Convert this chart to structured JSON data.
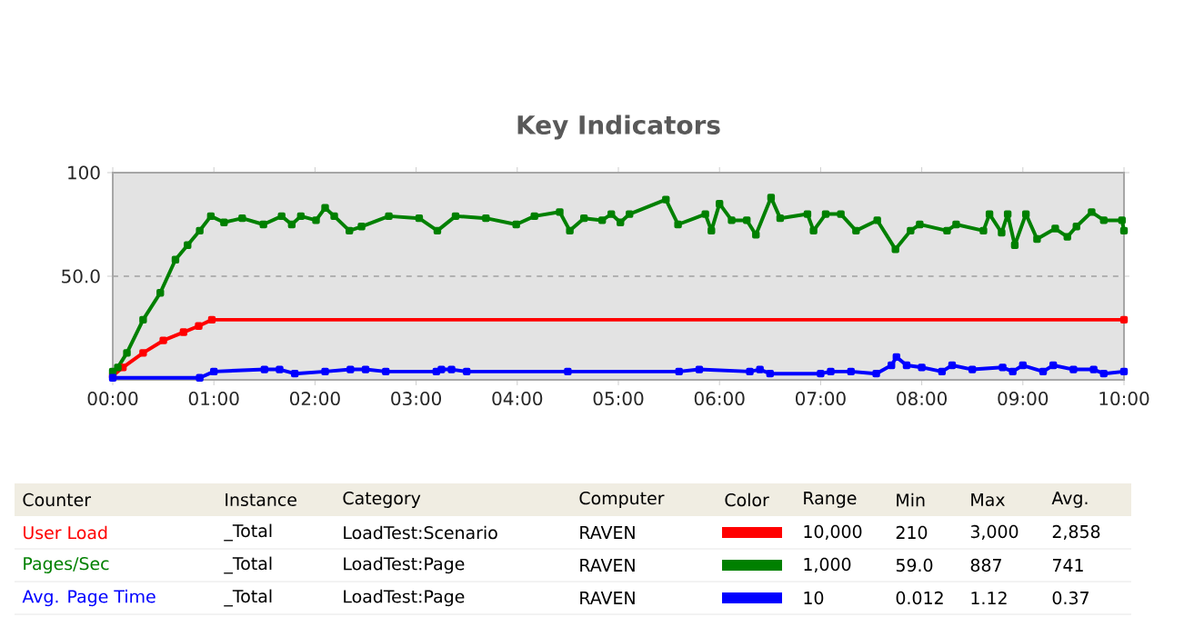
{
  "chart_data": {
    "type": "line",
    "title": "Key Indicators",
    "xlim": [
      0,
      10
    ],
    "ylim": [
      0,
      100
    ],
    "xticks": [
      {
        "value": 0,
        "label": "00:00"
      },
      {
        "value": 1,
        "label": "01:00"
      },
      {
        "value": 2,
        "label": "02:00"
      },
      {
        "value": 3,
        "label": "03:00"
      },
      {
        "value": 4,
        "label": "04:00"
      },
      {
        "value": 5,
        "label": "05:00"
      },
      {
        "value": 6,
        "label": "06:00"
      },
      {
        "value": 7,
        "label": "07:00"
      },
      {
        "value": 8,
        "label": "08:00"
      },
      {
        "value": 9,
        "label": "09:00"
      },
      {
        "value": 10,
        "label": "10:00"
      }
    ],
    "yticks": [
      {
        "value": 50,
        "label": "50.0"
      },
      100
    ],
    "grid": "y",
    "legend": "bottom",
    "marker": "square",
    "series": [
      {
        "name": "User Load",
        "color": "#ff0000",
        "x": [
          0,
          0.1,
          0.3,
          0.5,
          0.7,
          0.85,
          0.98,
          10
        ],
        "values": [
          2,
          6,
          13,
          19,
          23,
          26,
          29,
          29
        ]
      },
      {
        "name": "Pages/Sec",
        "color": "#008000",
        "x": [
          0,
          0.05,
          0.14,
          0.3,
          0.47,
          0.62,
          0.74,
          0.86,
          0.97,
          1.1,
          1.28,
          1.49,
          1.67,
          1.77,
          1.86,
          2.01,
          2.1,
          2.19,
          2.34,
          2.46,
          2.73,
          3.03,
          3.21,
          3.39,
          3.69,
          3.99,
          4.17,
          4.42,
          4.52,
          4.66,
          4.84,
          4.93,
          5.02,
          5.11,
          5.47,
          5.59,
          5.86,
          5.92,
          6.0,
          6.12,
          6.27,
          6.36,
          6.51,
          6.6,
          6.87,
          6.93,
          7.05,
          7.2,
          7.35,
          7.56,
          7.74,
          7.89,
          7.98,
          8.25,
          8.34,
          8.61,
          8.67,
          8.79,
          8.85,
          8.92,
          9.03,
          9.14,
          9.32,
          9.44,
          9.53,
          9.68,
          9.8,
          9.98,
          10.0
        ],
        "values": [
          4,
          6,
          13,
          29,
          42,
          58,
          65,
          72,
          79,
          76,
          78,
          75,
          79,
          75,
          79,
          77,
          83,
          79,
          72,
          74,
          79,
          78,
          72,
          79,
          78,
          75,
          79,
          81,
          72,
          78,
          77,
          80,
          76,
          80,
          87,
          75,
          80,
          72,
          85,
          77,
          77,
          70,
          88,
          78,
          80,
          72,
          80,
          80,
          72,
          77,
          63,
          72,
          75,
          72,
          75,
          72,
          80,
          71,
          80,
          65,
          80,
          68,
          73,
          69,
          74,
          81,
          77,
          77,
          72
        ]
      },
      {
        "name": "Avg. Page Time",
        "color": "#0000ff",
        "x": [
          0,
          0.86,
          1.0,
          1.5,
          1.65,
          1.8,
          2.1,
          2.35,
          2.5,
          2.7,
          3.2,
          3.25,
          3.35,
          3.5,
          4.5,
          5.6,
          5.8,
          6.3,
          6.4,
          6.5,
          7.0,
          7.1,
          7.3,
          7.55,
          7.7,
          7.75,
          7.85,
          8.0,
          8.2,
          8.3,
          8.5,
          8.8,
          8.9,
          9.0,
          9.2,
          9.3,
          9.5,
          9.7,
          9.8,
          10.0
        ],
        "values": [
          1,
          1,
          4,
          5,
          5,
          3,
          4,
          5,
          5,
          4,
          4,
          5,
          5,
          4,
          4,
          4,
          5,
          4,
          5,
          3,
          3,
          4,
          4,
          3,
          7,
          11,
          7,
          6,
          4,
          7,
          5,
          6,
          4,
          7,
          4,
          7,
          5,
          5,
          3,
          4
        ]
      }
    ],
    "annotations": [
      "Counter",
      "Instance",
      "Category",
      "Computer",
      "Color",
      "Range",
      "Min",
      "Max",
      "Avg.",
      "_Total",
      "LoadTest:Scenario",
      "RAVEN",
      "10,000",
      "210",
      "3,000",
      "2,858",
      "_Total",
      "LoadTest:Page",
      "RAVEN",
      "1,000",
      "59.0",
      "887",
      "741",
      "_Total",
      "LoadTest:Page",
      "RAVEN",
      "10",
      "0.012",
      "1.12",
      "0.37"
    ]
  }
}
